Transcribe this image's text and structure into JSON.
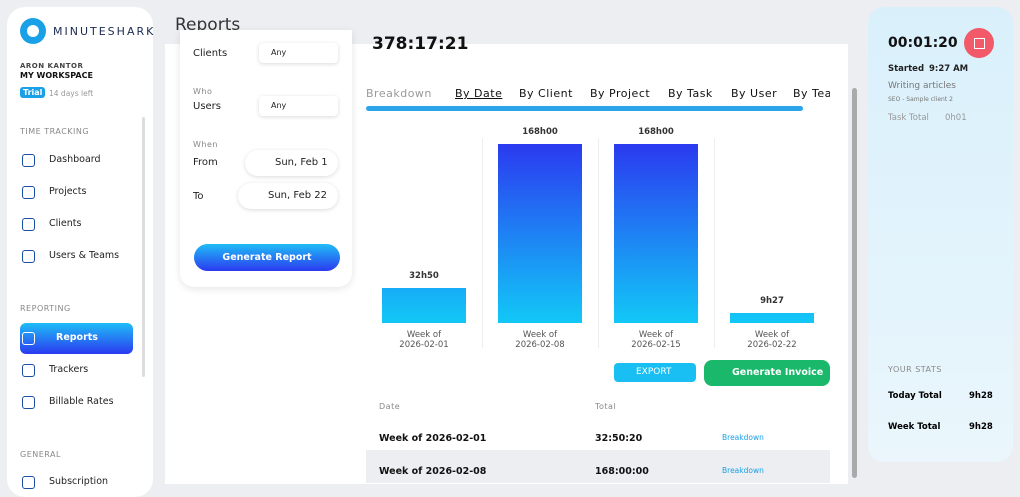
{
  "sidebar": {
    "brand": "MINUTESHARK",
    "user": "ARON KANTOR",
    "workspace": "MY WORKSPACE",
    "trial": "Trial",
    "trial_note": "14 days left",
    "sections": [
      {
        "title": "TIME TRACKING",
        "items": [
          "Dashboard",
          "Projects",
          "Clients",
          "Users & Teams"
        ]
      },
      {
        "title": "REPORTING",
        "items": [
          "Reports",
          "Trackers",
          "Billable Rates"
        ]
      },
      {
        "title": "GENERAL",
        "items": [
          "Subscription"
        ]
      }
    ]
  },
  "header": {
    "title": "Reports"
  },
  "filters": {
    "clients_label": "Clients",
    "clients_value": "Any",
    "who": "Who",
    "users_label": "Users",
    "users_value": "Any",
    "when": "When",
    "from_label": "From",
    "from_value": "Sun, Feb 1",
    "to_label": "To",
    "to_value": "Sun, Feb 22",
    "button": "Generate Report"
  },
  "report": {
    "total": "378:17:21",
    "tabs": [
      "Breakdown",
      "By Date",
      "By Client",
      "By Project",
      "By Task",
      "By User",
      "By Team"
    ],
    "export": "EXPORT",
    "invoice": "Generate Invoice"
  },
  "chart_data": {
    "type": "bar",
    "categories": [
      "Week of 2026-02-01",
      "Week of 2026-02-08",
      "Week of 2026-02-15",
      "Week of 2026-02-22"
    ],
    "values": [
      32.83,
      168,
      168,
      9.45
    ],
    "value_labels": [
      "32h50",
      "168h00",
      "168h00",
      "9h27"
    ],
    "color": "#2b3af0"
  },
  "table": {
    "headers": [
      "Date",
      "Total"
    ],
    "rows": [
      [
        "Week of 2026-02-01",
        "32:50:20",
        "Breakdown"
      ],
      [
        "Week of 2026-02-08",
        "168:00:00",
        "Breakdown"
      ]
    ]
  },
  "timer": {
    "time": "00:01:20",
    "started_label": "Started",
    "started_time": "9:27 AM",
    "task": "Writing articles",
    "project": "SEO - Sample client 2",
    "task_total_label": "Task Total",
    "task_total": "0h01",
    "stats_title": "YOUR STATS",
    "today_label": "Today Total",
    "today": "9h28",
    "week_label": "Week Total",
    "week": "9h28"
  }
}
